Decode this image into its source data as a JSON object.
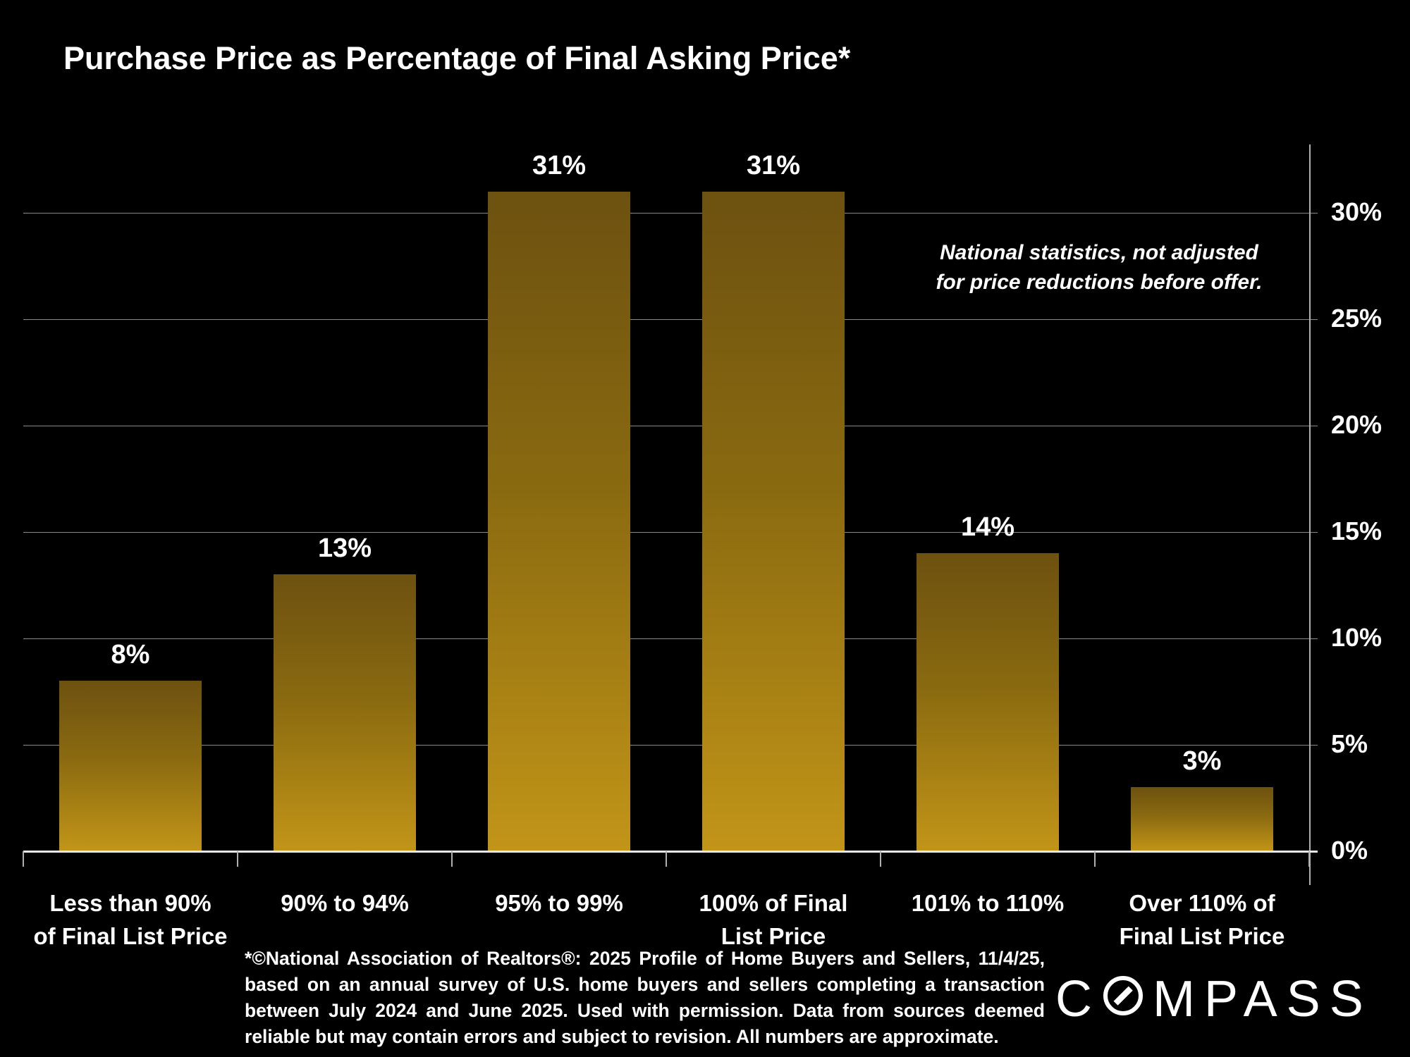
{
  "slide": {
    "title": "Purchase Price as Percentage of Final Asking Price*",
    "annotation_lines": [
      "National statistics, not adjusted",
      "for price reductions before offer."
    ],
    "footnote": "*©National Association of Realtors®: 2025 Profile of Home Buyers and Sellers, 11/4/25, based on an annual survey of U.S. home buyers and sellers completing a transaction between July 2024 and June 2025. Used with permission. Data from sources deemed reliable but may contain errors and subject to revision. All numbers are approximate.",
    "brand": "COMPASS",
    "colors": {
      "background": "#000000",
      "text": "#ffffff",
      "bar_gradient_top": "#6d5110",
      "bar_gradient_bottom": "#c29518",
      "gridline": "#8a8a8a",
      "axis": "#b0b0b0"
    }
  },
  "chart_data": {
    "type": "bar",
    "title": "Purchase Price as Percentage of Final Asking Price*",
    "categories": [
      "Less than 90% of Final List Price",
      "90% to 94%",
      "95% to 99%",
      "100% of Final List Price",
      "101% to 110%",
      "Over 110% of Final List Price"
    ],
    "category_lines": [
      [
        "Less than 90%",
        "of Final List Price"
      ],
      [
        "90% to 94%"
      ],
      [
        "95% to 99%"
      ],
      [
        "100% of Final",
        "List Price"
      ],
      [
        "101% to 110%"
      ],
      [
        "Over 110% of",
        "Final List Price"
      ]
    ],
    "values": [
      8,
      13,
      31,
      31,
      14,
      3
    ],
    "bar_labels": [
      "8%",
      "13%",
      "31%",
      "31%",
      "14%",
      "3%"
    ],
    "xlabel": "",
    "ylabel": "",
    "yticks": [
      0,
      5,
      10,
      15,
      20,
      25,
      30
    ],
    "ytick_labels": [
      "0%",
      "5%",
      "10%",
      "15%",
      "20%",
      "25%",
      "30%"
    ],
    "ylim": [
      0,
      33.2
    ],
    "grid": true,
    "y_axis_side": "right",
    "legend": "none",
    "annotation": "National statistics, not adjusted for price reductions before offer."
  }
}
